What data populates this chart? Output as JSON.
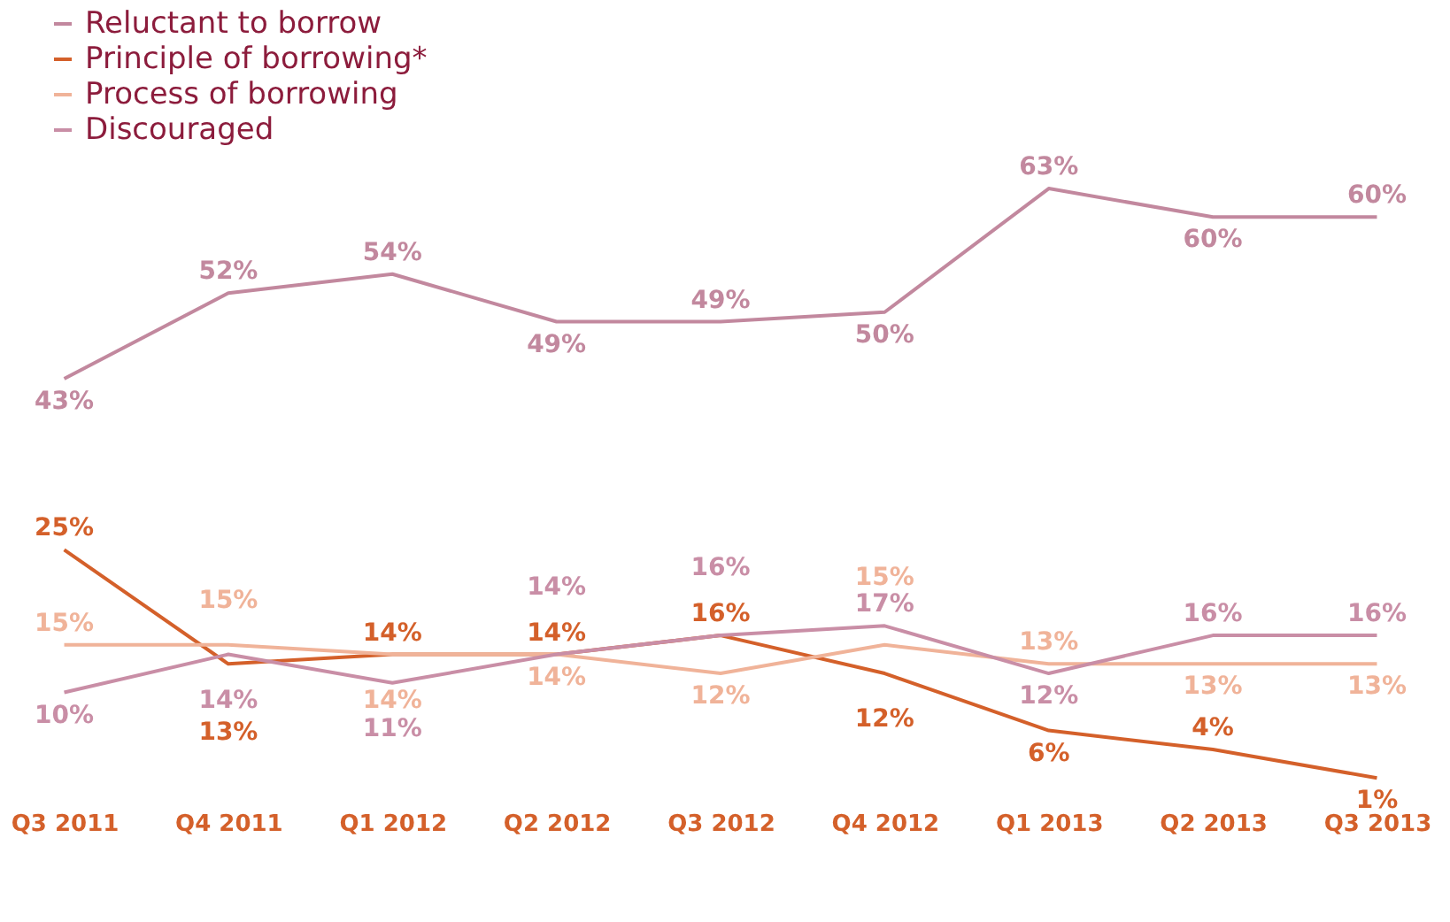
{
  "chart_data": {
    "type": "line",
    "categories": [
      "Q3 2011",
      "Q4 2011",
      "Q1 2012",
      "Q2 2012",
      "Q3 2012",
      "Q4 2012",
      "Q1 2013",
      "Q2 2013",
      "Q3 2013"
    ],
    "series": [
      {
        "name": "Reluctant to borrow",
        "color": "#c2889e",
        "values": [
          43,
          52,
          54,
          49,
          49,
          50,
          63,
          60,
          60
        ],
        "value_labels": [
          "43%",
          "52%",
          "54%",
          "49%",
          "49%",
          "50%",
          "63%",
          "60%",
          "60%"
        ]
      },
      {
        "name": "Principle of borrowing*",
        "color": "#d4602a",
        "values": [
          25,
          13,
          14,
          14,
          16,
          12,
          6,
          4,
          1
        ],
        "value_labels": [
          "25%",
          "13%",
          "14%",
          "14%",
          "16%",
          "12%",
          "6%",
          "4%",
          "1%"
        ]
      },
      {
        "name": "Process of borrowing",
        "color": "#f0b399",
        "values": [
          15,
          15,
          14,
          14,
          12,
          15,
          13,
          13,
          13
        ],
        "value_labels": [
          "15%",
          "15%",
          "14%",
          "14%",
          "12%",
          "15%",
          "13%",
          "13%",
          "13%"
        ]
      },
      {
        "name": "Discouraged",
        "color": "#c98ea6",
        "values": [
          10,
          14,
          11,
          14,
          16,
          17,
          12,
          16,
          16
        ],
        "value_labels": [
          "10%",
          "14%",
          "11%",
          "14%",
          "16%",
          "17%",
          "12%",
          "16%",
          "16%"
        ]
      }
    ],
    "legend": "top left",
    "grid": false,
    "marker": "none",
    "line_style": "solid"
  }
}
